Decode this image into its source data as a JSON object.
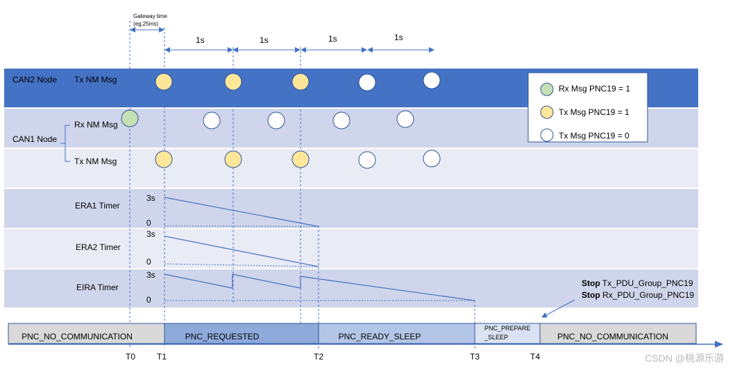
{
  "gateway": {
    "line1": "Gateway time",
    "line2": "(eg,25ms)"
  },
  "intervals": [
    "1s",
    "1s",
    "1s",
    "1s"
  ],
  "rows": {
    "can2_node": "CAN2 Node",
    "can2_tx": "Tx NM Msg",
    "can1_node": "CAN1 Node",
    "can1_rx": "Rx NM Msg",
    "can1_tx": "Tx NM Msg",
    "era1": "ERA1 Timer",
    "era2": "ERA2 Timer",
    "eira": "EIRA Timer"
  },
  "timer_levels": {
    "max": "3s",
    "min": "0"
  },
  "legend": {
    "items": [
      {
        "label": "Rx Msg PNC19 = 1",
        "color": "#c5e0b4"
      },
      {
        "label": "Tx Msg PNC19 = 1",
        "color": "#ffe699"
      },
      {
        "label": "Tx Msg PNC19 = 0",
        "color": "#ffffff"
      }
    ]
  },
  "stop_note": {
    "line1_bold": "Stop",
    "line1_rest": " Tx_PDU_Group_PNC19",
    "line2_bold": "Stop",
    "line2_rest": " Rx_PDU_Group_PNC19"
  },
  "states": {
    "no_comm": "PNC_NO_COMMUNICATION",
    "requested": "PNC_REQUESTED",
    "ready_sleep": "PNC_READY_SLEEP",
    "prepare_line1": "PNC_PREPARE",
    "prepare_line2": "_SLEEP",
    "no_comm_end": "PNC_NO_COMMUNICATION"
  },
  "time_labels": [
    "T0",
    "T1",
    "T2",
    "T3",
    "T4"
  ],
  "watermark": "CSDN @桃源乐游",
  "colors": {
    "can2_band": "#4472c4",
    "band_dark": "#cfd5ea",
    "band_light": "#e9ebf5",
    "line": "#4472c4",
    "state_grey": "#d9d9d9",
    "state_requested": "#8eaadb",
    "state_ready": "#b4c6e7",
    "state_prepare": "#dae3f3"
  }
}
